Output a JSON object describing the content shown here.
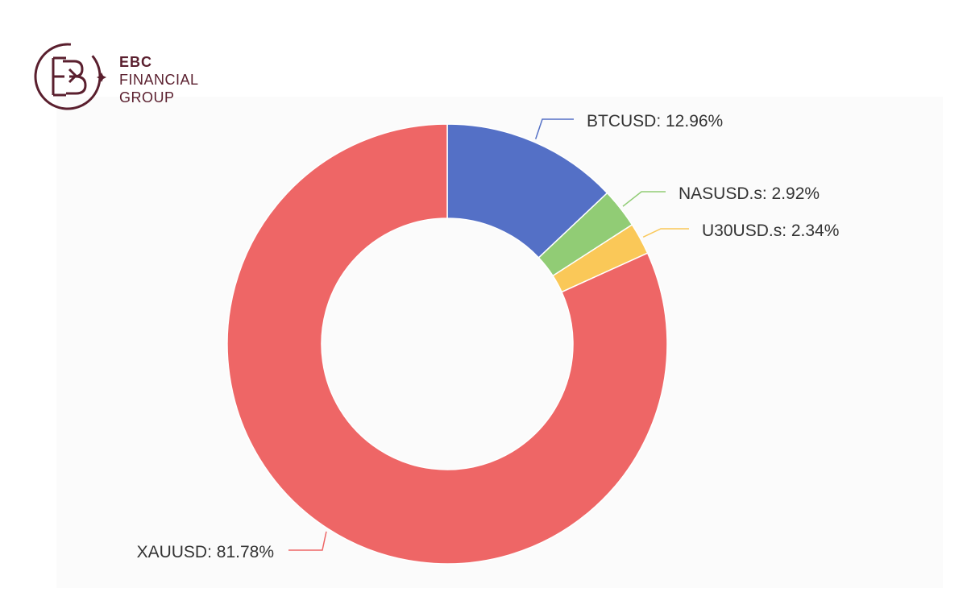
{
  "brand": {
    "line1": "EBC",
    "line2": "FINANCIAL",
    "line3": "GROUP",
    "color": "#5a1f2e"
  },
  "chart_data": {
    "type": "pie",
    "variant": "donut",
    "title": "",
    "slices": [
      {
        "name": "BTCUSD",
        "value": 12.96,
        "label": "BTCUSD: 12.96%",
        "color": "#5470c6"
      },
      {
        "name": "NASUSD.s",
        "value": 2.92,
        "label": "NASUSD.s: 2.92%",
        "color": "#91cc75"
      },
      {
        "name": "U30USD.s",
        "value": 2.34,
        "label": "U30USD.s: 2.34%",
        "color": "#fac858"
      },
      {
        "name": "XAUUSD",
        "value": 81.78,
        "label": "XAUUSD: 81.78%",
        "color": "#ee6666"
      }
    ],
    "legend": "none",
    "start": "top",
    "direction": "clockwise"
  }
}
